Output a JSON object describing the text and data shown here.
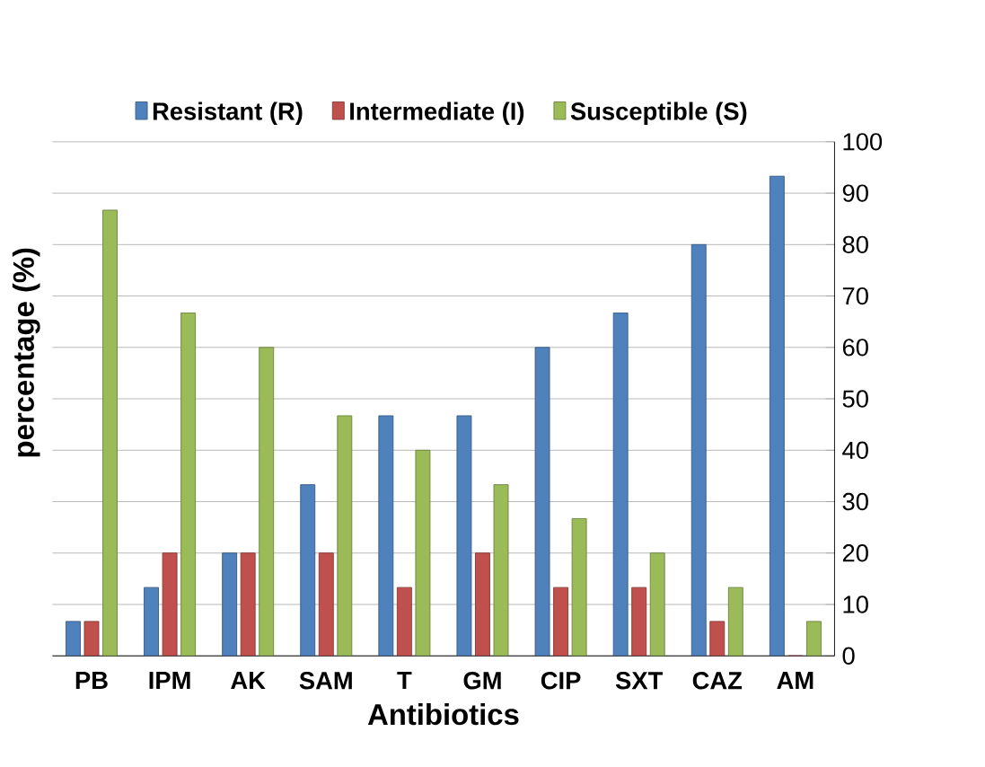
{
  "chart_data": {
    "type": "bar",
    "xlabel": "Antibiotics",
    "ylabel": "percentage (%)",
    "categories": [
      "PB",
      "IPM",
      "AK",
      "SAM",
      "T",
      "GM",
      "CIP",
      "SXT",
      "CAZ",
      "AM"
    ],
    "series": [
      {
        "name": "Resistant (R)",
        "color": "#4f81bd",
        "values": [
          6.7,
          13.3,
          20,
          33.3,
          46.7,
          46.7,
          60,
          66.7,
          80,
          93.3
        ]
      },
      {
        "name": "Intermediate (I)",
        "color": "#c0504d",
        "values": [
          6.7,
          20,
          20,
          20,
          13.3,
          20,
          13.3,
          13.3,
          6.7,
          0
        ]
      },
      {
        "name": "Susceptible (S)",
        "color": "#9bbb59",
        "values": [
          86.7,
          66.7,
          60,
          46.7,
          40,
          33.3,
          26.7,
          20,
          13.3,
          6.7
        ]
      }
    ],
    "ylim": [
      0,
      100
    ],
    "yticks": [
      0,
      10,
      20,
      30,
      40,
      50,
      60,
      70,
      80,
      90,
      100
    ],
    "grid": "y",
    "legend": "top"
  }
}
